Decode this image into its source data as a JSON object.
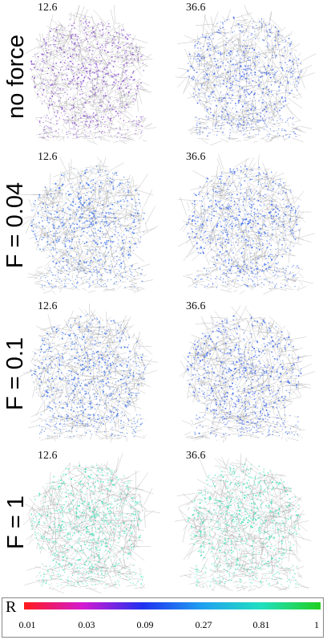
{
  "rows": [
    {
      "label": "no force",
      "times": [
        "12.6",
        "36.6"
      ],
      "dot_colors": [
        "#8a4fd0",
        "#4a6ee8"
      ]
    },
    {
      "label": "F = 0.04",
      "times": [
        "12.6",
        "36.6"
      ],
      "dot_colors": [
        "#3f74ea",
        "#3b6af0"
      ]
    },
    {
      "label": "F = 0.1",
      "times": [
        "12.6",
        "36.6"
      ],
      "dot_colors": [
        "#3d72ea",
        "#3b66ec"
      ]
    },
    {
      "label": "F = 1",
      "times": [
        "12.6",
        "36.6"
      ],
      "dot_colors": [
        "#3fe0b8",
        "#3fe0b8"
      ]
    }
  ],
  "colorbar": {
    "symbol": "R",
    "ticks": [
      "0.01",
      "0.03",
      "0.09",
      "0.27",
      "0.81",
      "1"
    ],
    "colors": [
      "#ff1a1a",
      "#d21ad2",
      "#2030f0",
      "#20a0f0",
      "#20e0c0",
      "#20d020"
    ]
  },
  "edge_color": "#8a8a8a"
}
